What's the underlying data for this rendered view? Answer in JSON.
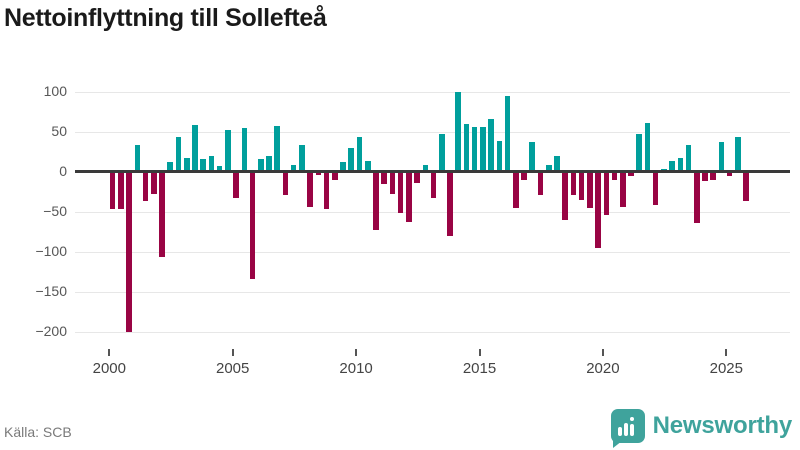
{
  "title": "Nettoinflyttning till Sollefteå",
  "source": "Källa: SCB",
  "brand": {
    "name": "Newsworthy",
    "icon": "bar-chart-bubble-icon"
  },
  "colors": {
    "positive": "#009f9c",
    "negative": "#990444",
    "axis": "#3a3a3a",
    "grid": "#e7e7e7",
    "brand_teal": "#3fa39c"
  },
  "chart_data": {
    "type": "bar",
    "title": "Nettoinflyttning till Sollefteå",
    "xlabel": "",
    "ylabel": "",
    "start_year": 2000,
    "periods_per_year": 3,
    "x_tick_labels": [
      "2000",
      "2005",
      "2010",
      "2015",
      "2020",
      "2025"
    ],
    "y_tick_values": [
      100,
      50,
      0,
      -50,
      -100,
      -150,
      -200
    ],
    "y_tick_labels": [
      "100",
      "50",
      "0",
      "−50",
      "−100",
      "−150",
      "−200"
    ],
    "ylim": [
      -210,
      110
    ],
    "grid": "horizontal-only",
    "legend": "none",
    "series": [
      {
        "name": "Nettoinflyttning",
        "values": [
          -47,
          -47,
          -201,
          34,
          -37,
          -28,
          -107,
          12,
          44,
          17,
          59,
          16,
          20,
          7,
          52,
          -33,
          55,
          -134,
          16,
          20,
          57,
          -29,
          9,
          34,
          -44,
          -4,
          -47,
          -10,
          12,
          30,
          43,
          14,
          -73,
          -15,
          -28,
          -52,
          -63,
          -14,
          8,
          -33,
          47,
          -80,
          100,
          60,
          56,
          56,
          66,
          39,
          95,
          -45,
          -11,
          37,
          -29,
          8,
          20,
          -60,
          -29,
          -35,
          -46,
          -96,
          -54,
          -10,
          -44,
          -5,
          47,
          61,
          -42,
          3,
          13,
          17,
          33,
          -64,
          -12,
          -10,
          37,
          -5,
          43,
          -37
        ]
      }
    ]
  }
}
